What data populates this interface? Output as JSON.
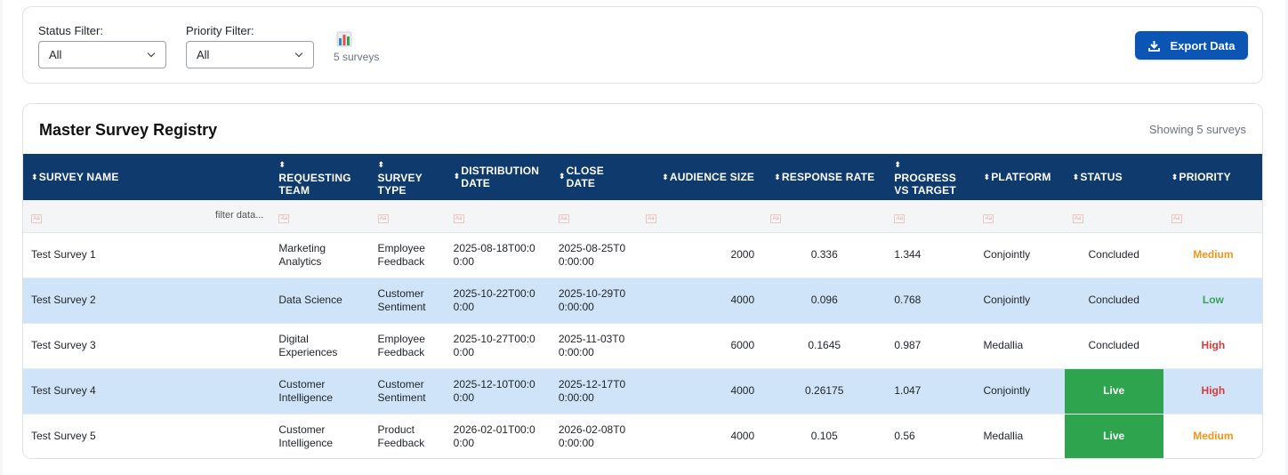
{
  "filters": {
    "status_label": "Status Filter:",
    "status_value": "All",
    "priority_label": "Priority Filter:",
    "priority_value": "All",
    "count_text": "5 surveys",
    "export_label": "Export Data"
  },
  "registry": {
    "title": "Master Survey Registry",
    "showing": "Showing 5 surveys",
    "filter_placeholder": "filter data...",
    "columns": [
      "SURVEY NAME",
      "REQUESTING TEAM",
      "SURVEY TYPE",
      "DISTRIBUTION DATE",
      "CLOSE DATE",
      "AUDIENCE SIZE",
      "RESPONSE RATE",
      "PROGRESS VS TARGET",
      "PLATFORM",
      "STATUS",
      "PRIORITY"
    ],
    "rows": [
      {
        "name": "Test Survey 1",
        "team": "Marketing Analytics",
        "type": "Employee Feedback",
        "dist": "2025-08-18T00:00:00",
        "close": "2025-08-25T00:00:00",
        "audience": "2000",
        "rate": "0.336",
        "progress": "1.344",
        "platform": "Conjointly",
        "status": "Concluded",
        "priority": "Medium"
      },
      {
        "name": "Test Survey 2",
        "team": "Data Science",
        "type": "Customer Sentiment",
        "dist": "2025-10-22T00:00:00",
        "close": "2025-10-29T00:00:00",
        "audience": "4000",
        "rate": "0.096",
        "progress": "0.768",
        "platform": "Conjointly",
        "status": "Concluded",
        "priority": "Low"
      },
      {
        "name": "Test Survey 3",
        "team": "Digital Experiences",
        "type": "Employee Feedback",
        "dist": "2025-10-27T00:00:00",
        "close": "2025-11-03T00:00:00",
        "audience": "6000",
        "rate": "0.1645",
        "progress": "0.987",
        "platform": "Medallia",
        "status": "Concluded",
        "priority": "High"
      },
      {
        "name": "Test Survey 4",
        "team": "Customer Intelligence",
        "type": "Customer Sentiment",
        "dist": "2025-12-10T00:00:00",
        "close": "2025-12-17T00:00:00",
        "audience": "4000",
        "rate": "0.26175",
        "progress": "1.047",
        "platform": "Conjointly",
        "status": "Live",
        "priority": "High"
      },
      {
        "name": "Test Survey 5",
        "team": "Customer Intelligence",
        "type": "Product Feedback",
        "dist": "2026-02-01T00:00:00",
        "close": "2026-02-08T00:00:00",
        "audience": "4000",
        "rate": "0.105",
        "progress": "0.56",
        "platform": "Medallia",
        "status": "Live",
        "priority": "Medium"
      }
    ]
  },
  "colors": {
    "header_bg": "#0e3a6e",
    "accent": "#0b56b4",
    "alt_row": "#cfe4f8",
    "live": "#2ea44f",
    "priority_medium": "#f0961c",
    "priority_low": "#3aa055",
    "priority_high": "#d93a3a"
  }
}
